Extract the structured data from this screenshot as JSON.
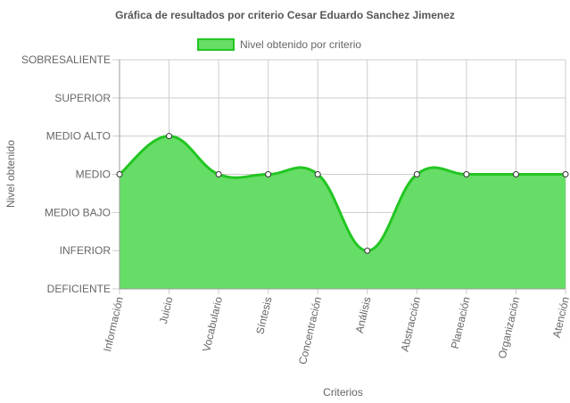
{
  "chart_data": {
    "type": "area",
    "title": "Gráfica de resultados por criterio Cesar Eduardo Sanchez Jimenez",
    "xlabel": "Criterios",
    "ylabel": "Nivel obtenido",
    "categories": [
      "Información",
      "Juicio",
      "Vocabulario",
      "Síntesis",
      "Concentración",
      "Análisis",
      "Abstracción",
      "Planeación",
      "Organización",
      "Atención"
    ],
    "y_levels": [
      "DEFICIENTE",
      "INFERIOR",
      "MEDIO BAJO",
      "MEDIO",
      "MEDIO ALTO",
      "SUPERIOR",
      "SOBRESALIENTE"
    ],
    "ylim": [
      0,
      6
    ],
    "series": [
      {
        "name": "Nivel obtenido por criterio",
        "values": [
          3,
          4,
          3,
          3,
          3,
          1,
          3,
          3,
          3,
          3
        ]
      }
    ],
    "colors": {
      "fill": "#66dd66",
      "line": "#22c622",
      "point": "#ffffff",
      "grid": "#cccccc"
    },
    "legend_position": "top",
    "grid": true
  }
}
